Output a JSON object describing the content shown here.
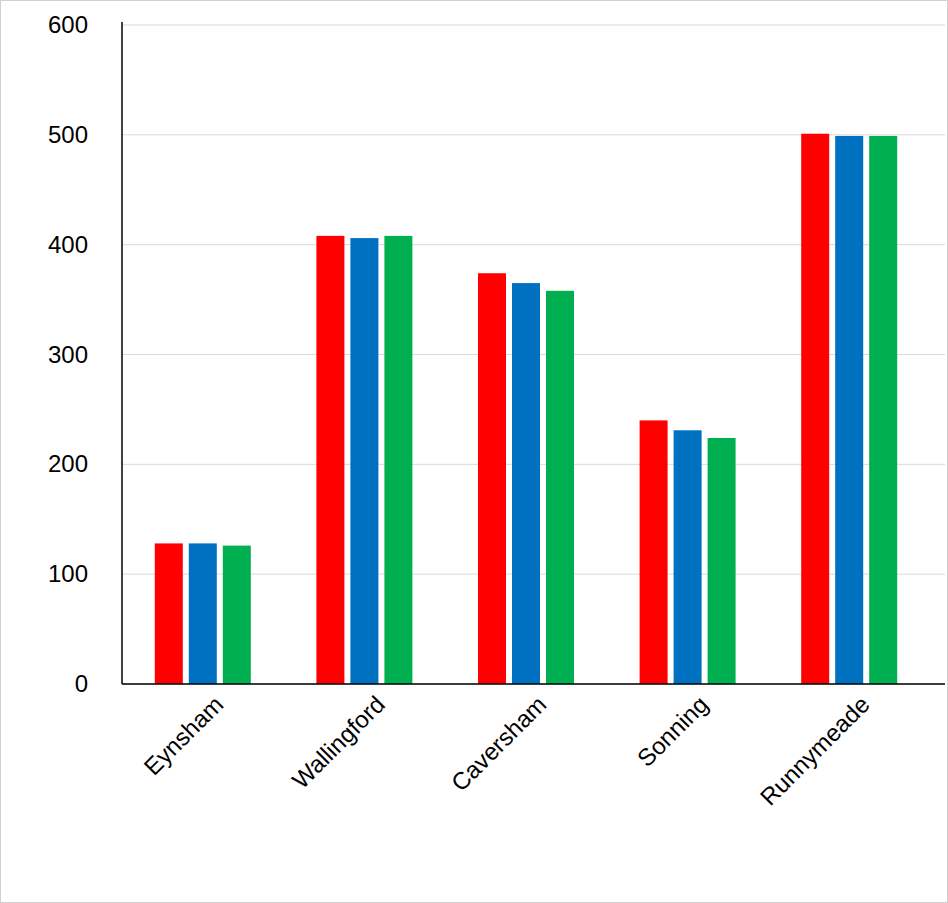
{
  "chart_data": {
    "type": "bar",
    "categories": [
      "Eynsham",
      "Wallingford",
      "Caversham",
      "Sonning",
      "Runnymeade"
    ],
    "series": [
      {
        "color": "#ff0000",
        "values": [
          128,
          408,
          374,
          240,
          501
        ]
      },
      {
        "color": "#0070c0",
        "values": [
          128,
          406,
          365,
          231,
          499
        ]
      },
      {
        "color": "#00b050",
        "values": [
          126,
          408,
          358,
          224,
          499
        ]
      }
    ],
    "ylim": [
      0,
      600
    ],
    "yticks": [
      0,
      100,
      200,
      300,
      400,
      500,
      600
    ],
    "grid": true
  }
}
